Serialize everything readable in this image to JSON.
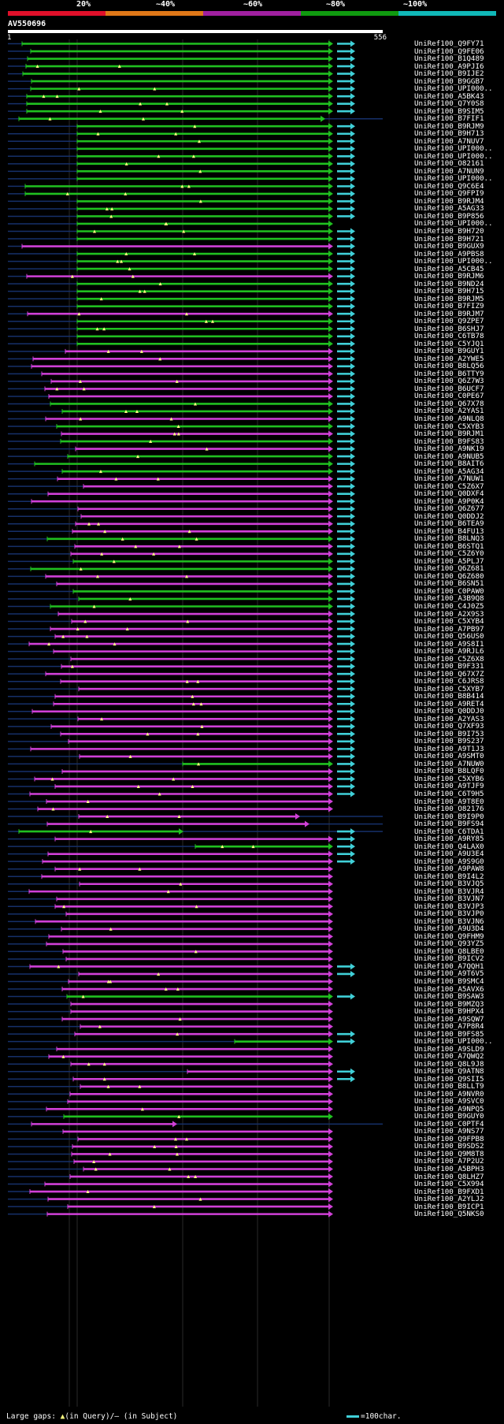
{
  "legend": {
    "percent_labels": [
      "20%",
      "~40%",
      "~60%",
      "~80%",
      "~100%"
    ],
    "colors": [
      "#e0102a",
      "#e07818",
      "#a020a0",
      "#109a10",
      "#10b8b8"
    ]
  },
  "query": {
    "name": "AV550696",
    "start": "1",
    "end": "556",
    "length": 556
  },
  "footer": {
    "gaps_label": "Large gaps:",
    "query_gap_label": "(in Query)",
    "subject_gap_label": "/– (in Subject)",
    "scale_label": "=100char."
  },
  "colors": {
    "magenta": "#d040d8",
    "green": "#20c020",
    "cyan": "#40d0d8",
    "navy": "#16306a",
    "gap_triangle": "#ffff80"
  },
  "hit_labels": [
    "UniRef100_Q9FY71",
    "UniRef100_Q9FE06",
    "UniRef100_B1Q489",
    "UniRef100_A9PJI6",
    "UniRef100_B9IJE2",
    "UniRef100_B9GGB7",
    "UniRef100_UPI000..",
    "UniRef100_A5BK43",
    "UniRef100_Q7Y0S8",
    "UniRef100_B9SIM5",
    "UniRef100_B7FIF1",
    "UniRef100_B9RJM9",
    "UniRef100_B9H713",
    "UniRef100_A7NUV7",
    "UniRef100_UPI000..",
    "UniRef100_UPI000..",
    "UniRef100_O82161",
    "UniRef100_A7NUN9",
    "UniRef100_UPI000..",
    "UniRef100_Q9C6E4",
    "UniRef100_Q9FPI9",
    "UniRef100_B9RJM4",
    "UniRef100_A5AG33",
    "UniRef100_B9P856",
    "UniRef100_UPI000..",
    "UniRef100_B9H720",
    "UniRef100_B9H721",
    "UniRef100_B9GUX9",
    "UniRef100_A9PBS8",
    "UniRef100_UPI000..",
    "UniRef100_A5CB45",
    "UniRef100_B9RJM6",
    "UniRef100_B9ND24",
    "UniRef100_B9H715",
    "UniRef100_B9RJM5",
    "UniRef100_B7FIZ9",
    "UniRef100_B9RJM7",
    "UniRef100_Q9ZPE7",
    "UniRef100_B6SHJ7",
    "UniRef100_C6TB78",
    "UniRef100_C5YJQ1",
    "UniRef100_B9GUY1",
    "UniRef100_A2YWE5",
    "UniRef100_B8LQ56",
    "UniRef100_B6TTY9",
    "UniRef100_Q6Z7W3",
    "UniRef100_B6UCF7",
    "UniRef100_C0PE67",
    "UniRef100_Q67X78",
    "UniRef100_A2YAS1",
    "UniRef100_A9NLQ8",
    "UniRef100_C5XYB3",
    "UniRef100_B9RJM1",
    "UniRef100_B9FS83",
    "UniRef100_A9NK19",
    "UniRef100_A9NUB5",
    "UniRef100_B8AIT6",
    "UniRef100_A5AG34",
    "UniRef100_A7NUW1",
    "UniRef100_C5Z6X7",
    "UniRef100_Q0DXF4",
    "UniRef100_A9P0K4",
    "UniRef100_Q6Z677",
    "UniRef100_Q0DDJ2",
    "UniRef100_B6TEA9",
    "UniRef100_B4FU13",
    "UniRef100_B8LNQ3",
    "UniRef100_B6STQ1",
    "UniRef100_C5Z6Y0",
    "UniRef100_A5PLJ7",
    "UniRef100_Q6Z681",
    "UniRef100_Q6Z680",
    "UniRef100_B6SN51",
    "UniRef100_C0PAW0",
    "UniRef100_A3B9Q8",
    "UniRef100_C4J0Z5",
    "UniRef100_A2X9S3",
    "UniRef100_C5XYB4",
    "UniRef100_A7PB97",
    "UniRef100_Q56US0",
    "UniRef100_A9S8I1",
    "UniRef100_A9RJL6",
    "UniRef100_C5Z6X8",
    "UniRef100_B9F331",
    "UniRef100_Q67X7Z",
    "UniRef100_C6JRS8",
    "UniRef100_C5XYB7",
    "UniRef100_B8B414",
    "UniRef100_A9RET4",
    "UniRef100_Q0DDJ0",
    "UniRef100_A2YAS3",
    "UniRef100_Q7XF93",
    "UniRef100_B9I753",
    "UniRef100_B9S237",
    "UniRef100_A9T1J3",
    "UniRef100_A9SMT0",
    "UniRef100_A7NUW0",
    "UniRef100_B8LQF0",
    "UniRef100_C5XYB6",
    "UniRef100_A9TJF9",
    "UniRef100_C6T9H5",
    "UniRef100_A9T8E0",
    "UniRef100_O82176",
    "UniRef100_B9I9P0",
    "UniRef100_B9FS94",
    "UniRef100_C6TDA1",
    "UniRef100_A9RY85",
    "UniRef100_Q4LAX0",
    "UniRef100_A9U3E4",
    "UniRef100_A9S9G0",
    "UniRef100_A9PAW8",
    "UniRef100_B9I4L2",
    "UniRef100_B3VJQ5",
    "UniRef100_B3VJR4",
    "UniRef100_B3VJN7",
    "UniRef100_B3VJP3",
    "UniRef100_B3VJP0",
    "UniRef100_B3VJN6",
    "UniRef100_A9U3D4",
    "UniRef100_Q9FHM9",
    "UniRef100_Q93YZ5",
    "UniRef100_Q8LBE0",
    "UniRef100_B9ICV2",
    "UniRef100_A7QQH1",
    "UniRef100_A9T6V5",
    "UniRef100_B9SMC4",
    "UniRef100_A5AVX6",
    "UniRef100_B9SAW3",
    "UniRef100_B9MZQ3",
    "UniRef100_B9HPX4",
    "UniRef100_A9SQW7",
    "UniRef100_A7P8R4",
    "UniRef100_B9FS85",
    "UniRef100_UPI000..",
    "UniRef100_A9SLD9",
    "UniRef100_A7QWQ2",
    "UniRef100_Q8L9J8",
    "UniRef100_Q9ATN8",
    "UniRef100_Q9SII5",
    "UniRef100_B8LLT9",
    "UniRef100_A9NVR0",
    "UniRef100_A9SVC0",
    "UniRef100_A9NPQ5",
    "UniRef100_B9GUY0",
    "UniRef100_C0PTF4",
    "UniRef100_A9NS77",
    "UniRef100_Q9FPB8",
    "UniRef100_B9SDS2",
    "UniRef100_Q9M8T8",
    "UniRef100_A7P2U2",
    "UniRef100_A5BPH3",
    "UniRef100_Q8LHZ7",
    "UniRef100_C5X994",
    "UniRef100_B9FXD1",
    "UniRef100_A2YLJ2",
    "UniRef100_B9ICP1",
    "UniRef100_Q5NKS0"
  ]
}
